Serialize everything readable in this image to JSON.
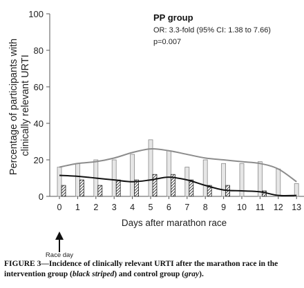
{
  "chart_data": {
    "type": "bar",
    "x": [
      0,
      1,
      2,
      3,
      4,
      5,
      6,
      7,
      8,
      9,
      10,
      11,
      12,
      13
    ],
    "xlabel": "Days after marathon race",
    "ylabel": "Percentage of participants with clinically relevant URTI",
    "ylim": [
      0,
      100
    ],
    "yticks": [
      0,
      20,
      40,
      60,
      80,
      100
    ],
    "series": [
      {
        "name": "control group",
        "style": "gray-bars",
        "values": [
          16,
          18,
          20,
          20,
          23,
          31,
          25,
          16,
          20,
          18,
          18,
          19,
          15,
          7
        ],
        "trend": [
          16,
          18,
          19,
          21,
          24,
          26,
          25,
          23,
          21,
          20,
          19,
          18,
          15,
          8
        ]
      },
      {
        "name": "intervention group",
        "style": "black-striped-bars",
        "values": [
          6,
          9,
          6,
          9,
          9,
          12,
          12,
          9,
          6,
          6,
          0,
          3,
          0,
          0
        ],
        "trend": [
          11.5,
          11,
          10,
          9,
          8,
          9,
          10.5,
          9,
          6,
          3.5,
          3,
          2.5,
          0.5,
          0.5
        ]
      }
    ],
    "annotation": {
      "title": "PP group",
      "lines": [
        "OR: 3.3-fold (95% CI: 1.38 to 7.66)",
        "p=0.007"
      ]
    },
    "marker": {
      "x": 0,
      "label": "Race day"
    },
    "colors": {
      "control": "#e6e6e6",
      "control_stroke": "#888888",
      "control_line": "#8c8c8c",
      "intervention_line": "#111111"
    }
  },
  "caption": {
    "p1": "FIGURE 3—Incidence of clinically relevant URTI after the marathon race in the intervention group (",
    "i1": "black striped",
    "p2": ") and control group (",
    "i2": "gray",
    "p3": ")."
  }
}
